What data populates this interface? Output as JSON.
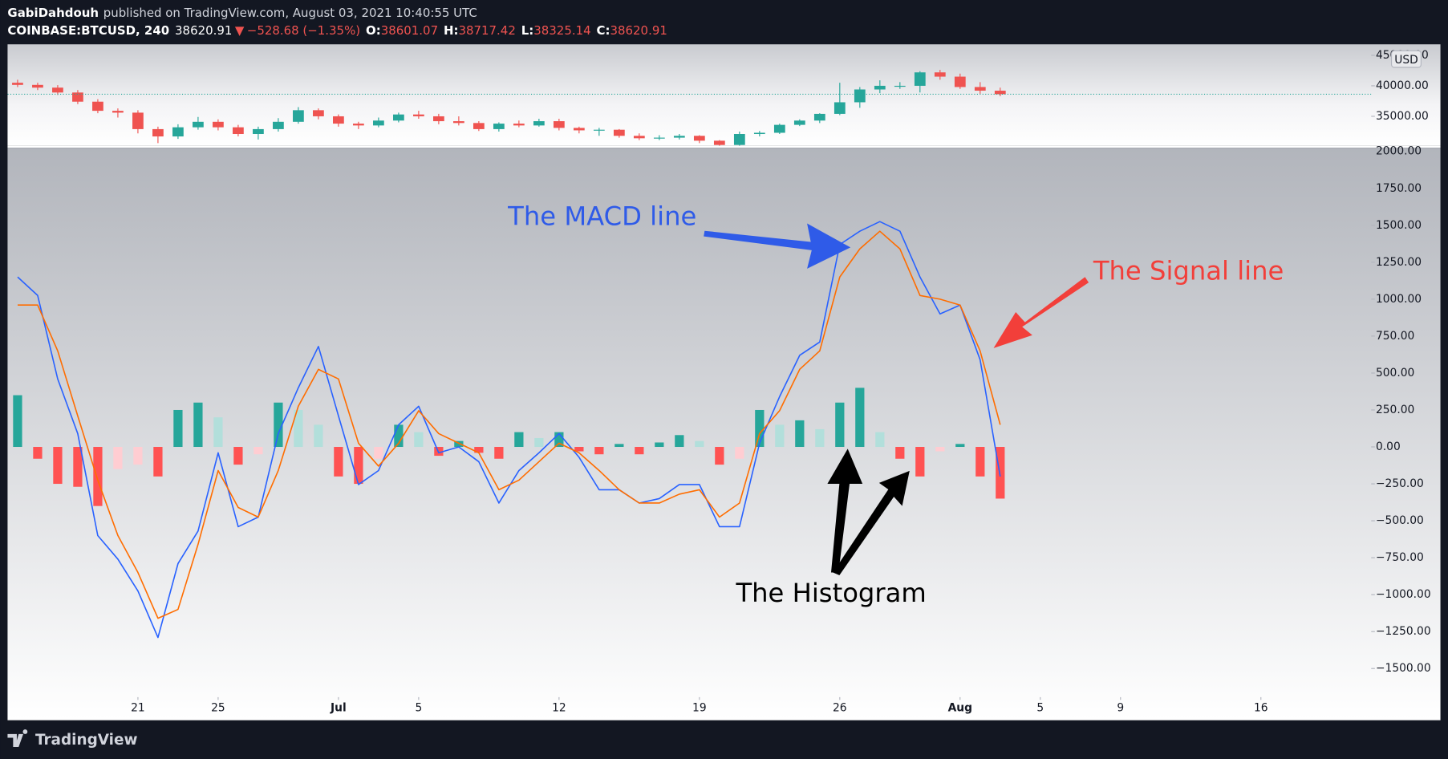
{
  "header": {
    "author": "GabiDahdouh",
    "published": "published on TradingView.com, August 03, 2021 10:40:55 UTC",
    "symbol": "COINBASE:BTCUSD, 240",
    "last": "38620.91",
    "arrow": "▼",
    "change": "−528.68 (−1.35%)",
    "ohlc": [
      {
        "label": "O:",
        "value": "38601.07"
      },
      {
        "label": "H:",
        "value": "38717.42"
      },
      {
        "label": "L:",
        "value": "38325.14"
      },
      {
        "label": "C:",
        "value": "38620.91"
      }
    ]
  },
  "currency": "USD",
  "footer": {
    "brand": "TradingView"
  },
  "annotations": [
    {
      "text": "The MACD line",
      "color": "#2f5be8"
    },
    {
      "text": "The Signal line",
      "color": "#f23f3a"
    },
    {
      "text": "The Histogram",
      "color": "#000000"
    }
  ],
  "chart_data": [
    {
      "type": "candlestick",
      "x": [
        "2021-06-15",
        "2021-06-16",
        "2021-06-17",
        "2021-06-18",
        "2021-06-19",
        "2021-06-20",
        "2021-06-21",
        "2021-06-22",
        "2021-06-23",
        "2021-06-24",
        "2021-06-25",
        "2021-06-26",
        "2021-06-27",
        "2021-06-28",
        "2021-06-29",
        "2021-06-30",
        "2021-07-01",
        "2021-07-02",
        "2021-07-03",
        "2021-07-04",
        "2021-07-05",
        "2021-07-06",
        "2021-07-07",
        "2021-07-08",
        "2021-07-09",
        "2021-07-10",
        "2021-07-11",
        "2021-07-12",
        "2021-07-13",
        "2021-07-14",
        "2021-07-15",
        "2021-07-16",
        "2021-07-17",
        "2021-07-18",
        "2021-07-19",
        "2021-07-20",
        "2021-07-21",
        "2021-07-22",
        "2021-07-23",
        "2021-07-24",
        "2021-07-25",
        "2021-07-26",
        "2021-07-27",
        "2021-07-28",
        "2021-07-29",
        "2021-07-30",
        "2021-07-31",
        "2021-08-01",
        "2021-08-02",
        "2021-08-03"
      ],
      "open": [
        40500,
        40150,
        39700,
        38900,
        37400,
        35900,
        35600,
        32900,
        31700,
        33200,
        34100,
        33200,
        32100,
        32900,
        34100,
        36000,
        35000,
        33800,
        33500,
        34300,
        35300,
        35000,
        34200,
        33900,
        32900,
        33800,
        33500,
        34200,
        33100,
        32700,
        32800,
        31800,
        31400,
        31500,
        31800,
        31000,
        30300,
        32100,
        32300,
        33600,
        34300,
        35400,
        37300,
        39400,
        40000,
        40000,
        42200,
        41500,
        39800,
        39200
      ],
      "high": [
        41000,
        40500,
        40100,
        39300,
        37800,
        36300,
        36000,
        33300,
        33700,
        34900,
        34500,
        33600,
        33300,
        34700,
        36500,
        36300,
        35300,
        34100,
        34800,
        35600,
        35900,
        35400,
        35000,
        34200,
        34000,
        34300,
        34600,
        34600,
        33300,
        33100,
        32900,
        32200,
        31900,
        32100,
        31900,
        31100,
        32500,
        32600,
        33800,
        34500,
        35500,
        40500,
        39800,
        40900,
        40600,
        42400,
        42600,
        42000,
        40600,
        39700
      ],
      "low": [
        39800,
        39300,
        38500,
        37000,
        35500,
        34800,
        32200,
        30600,
        31300,
        32800,
        32700,
        31700,
        31200,
        32500,
        33800,
        34500,
        33300,
        32900,
        33200,
        34000,
        34600,
        33700,
        33500,
        32600,
        32500,
        33200,
        33300,
        32700,
        32200,
        31800,
        31500,
        31100,
        31100,
        31200,
        30600,
        30200,
        30200,
        31700,
        32100,
        33400,
        33900,
        35200,
        36400,
        38800,
        39500,
        38900,
        41000,
        39500,
        38700,
        38300
      ],
      "close": [
        40150,
        39700,
        38900,
        37400,
        35900,
        35600,
        32900,
        31700,
        33200,
        34100,
        33200,
        32100,
        32900,
        34100,
        36000,
        35000,
        33800,
        33500,
        34300,
        35300,
        35000,
        34200,
        33900,
        32900,
        33800,
        33500,
        34200,
        33100,
        32700,
        32800,
        31800,
        31400,
        31500,
        31800,
        31000,
        30300,
        32100,
        32300,
        33600,
        34300,
        35400,
        37300,
        39400,
        40000,
        40000,
        42200,
        41500,
        39800,
        39200,
        38620.91
      ],
      "up_color": "#26a69a",
      "down_color": "#ef5350",
      "last_price_line": true,
      "xlim": [
        "2021-06-14T12:00",
        "2021-08-21T12:00"
      ],
      "ylim": [
        30150,
        46800
      ],
      "yticks": [
        {
          "value": 45000,
          "label": "45000.00"
        },
        {
          "value": 40000,
          "label": "40000.00"
        },
        {
          "value": 35000,
          "label": "35000.00"
        }
      ],
      "grid": false
    },
    {
      "type": "macd",
      "x": [
        "2021-06-15",
        "2021-06-16",
        "2021-06-17",
        "2021-06-18",
        "2021-06-19",
        "2021-06-20",
        "2021-06-21",
        "2021-06-22",
        "2021-06-23",
        "2021-06-24",
        "2021-06-25",
        "2021-06-26",
        "2021-06-27",
        "2021-06-28",
        "2021-06-29",
        "2021-06-30",
        "2021-07-01",
        "2021-07-02",
        "2021-07-03",
        "2021-07-04",
        "2021-07-05",
        "2021-07-06",
        "2021-07-07",
        "2021-07-08",
        "2021-07-09",
        "2021-07-10",
        "2021-07-11",
        "2021-07-12",
        "2021-07-13",
        "2021-07-14",
        "2021-07-15",
        "2021-07-16",
        "2021-07-17",
        "2021-07-18",
        "2021-07-19",
        "2021-07-20",
        "2021-07-21",
        "2021-07-22",
        "2021-07-23",
        "2021-07-24",
        "2021-07-25",
        "2021-07-26",
        "2021-07-27",
        "2021-07-28",
        "2021-07-29",
        "2021-07-30",
        "2021-07-31",
        "2021-08-01",
        "2021-08-02",
        "2021-08-03"
      ],
      "series": [
        {
          "color": "#2962ff",
          "values": [
            1150,
            1025,
            460,
            90,
            -600,
            -760,
            -975,
            -1290,
            -790,
            -570,
            -40,
            -540,
            -475,
            90,
            400,
            680,
            210,
            -255,
            -160,
            150,
            275,
            -40,
            0,
            -100,
            -380,
            -160,
            -40,
            90,
            -70,
            -290,
            -290,
            -380,
            -350,
            -255,
            -255,
            -540,
            -540,
            25,
            340,
            620,
            710,
            1370,
            1460,
            1525,
            1460,
            1150,
            900,
            960,
            590,
            -200
          ]
        },
        {
          "color": "#ff6d00",
          "values": [
            960,
            960,
            650,
            210,
            -225,
            -600,
            -850,
            -1160,
            -1100,
            -660,
            -160,
            -410,
            -475,
            -160,
            275,
            525,
            460,
            25,
            -130,
            25,
            245,
            90,
            25,
            -40,
            -290,
            -225,
            -100,
            25,
            -40,
            -160,
            -290,
            -380,
            -380,
            -320,
            -290,
            -475,
            -380,
            90,
            245,
            525,
            650,
            1150,
            1340,
            1460,
            1340,
            1025,
            1000,
            960,
            650,
            150
          ]
        }
      ],
      "histogram": {
        "values": [
          350,
          -80,
          -250,
          -270,
          -400,
          -150,
          -120,
          -200,
          250,
          300,
          200,
          -120,
          -50,
          300,
          250,
          150,
          -200,
          -250,
          -80,
          150,
          100,
          -60,
          40,
          -40,
          -80,
          100,
          60,
          100,
          -30,
          -50,
          20,
          -50,
          30,
          80,
          40,
          -120,
          -80,
          250,
          150,
          180,
          120,
          300,
          400,
          100,
          -80,
          -200,
          -30,
          20,
          -200,
          -350
        ],
        "colors": {
          "grow_above": "#26a69a",
          "fall_above": "#b2dfdb",
          "grow_below": "#ffcdd2",
          "fall_below": "#ff5252"
        }
      },
      "xlim": [
        "2021-06-14T12:00",
        "2021-08-21T12:00"
      ],
      "xticks": [
        {
          "value": "2021-06-21",
          "label": "21"
        },
        {
          "value": "2021-06-25",
          "label": "25"
        },
        {
          "value": "2021-07-01",
          "label": "Jul"
        },
        {
          "value": "2021-07-05",
          "label": "5"
        },
        {
          "value": "2021-07-12",
          "label": "12"
        },
        {
          "value": "2021-07-19",
          "label": "19"
        },
        {
          "value": "2021-07-26",
          "label": "26"
        },
        {
          "value": "2021-08-01",
          "label": "Aug"
        },
        {
          "value": "2021-08-05",
          "label": "5"
        },
        {
          "value": "2021-08-09",
          "label": "9"
        },
        {
          "value": "2021-08-16",
          "label": "16"
        }
      ],
      "ylim": [
        -1850,
        2025
      ],
      "yticks": [
        {
          "value": 2000,
          "label": "2000.00"
        },
        {
          "value": 1750,
          "label": "1750.00"
        },
        {
          "value": 1500,
          "label": "1500.00"
        },
        {
          "value": 1250,
          "label": "1250.00"
        },
        {
          "value": 1000,
          "label": "1000.00"
        },
        {
          "value": 750,
          "label": "750.00"
        },
        {
          "value": 500,
          "label": "500.00"
        },
        {
          "value": 250,
          "label": "250.00"
        },
        {
          "value": 0,
          "label": "0.00"
        },
        {
          "value": -250,
          "label": "−250.00"
        },
        {
          "value": -500,
          "label": "−500.00"
        },
        {
          "value": -750,
          "label": "−750.00"
        },
        {
          "value": -1000,
          "label": "−1000.00"
        },
        {
          "value": -1250,
          "label": "−1250.00"
        },
        {
          "value": -1500,
          "label": "−1500.00"
        }
      ],
      "grid": false
    }
  ]
}
